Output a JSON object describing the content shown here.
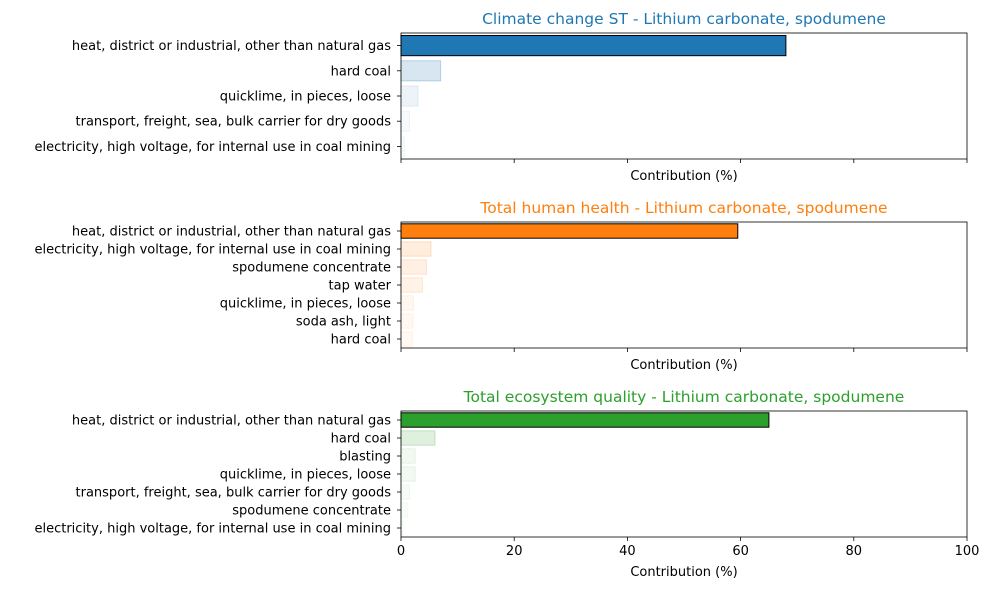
{
  "chart_data": [
    {
      "type": "bar",
      "orientation": "horizontal",
      "title": "Climate change ST - Lithium carbonate, spodumene",
      "title_color": "#1f77b4",
      "bar_color": "#1f77b4",
      "xlabel": "Contribution (%)",
      "xlim": [
        0,
        100
      ],
      "x_ticks": [
        0,
        20,
        40,
        60,
        80,
        100
      ],
      "show_tick_labels": false,
      "categories": [
        "heat, district or industrial, other than natural gas",
        "hard coal",
        "quicklime, in pieces, loose",
        "transport, freight, sea, bulk carrier for dry goods",
        "electricity, high voltage, for internal use in coal mining"
      ],
      "values": [
        68,
        7,
        3,
        1.5,
        0.6
      ]
    },
    {
      "type": "bar",
      "orientation": "horizontal",
      "title": "Total human health - Lithium carbonate, spodumene",
      "title_color": "#ff7f0e",
      "bar_color": "#ff7f0e",
      "xlabel": "Contribution (%)",
      "xlim": [
        0,
        100
      ],
      "x_ticks": [
        0,
        20,
        40,
        60,
        80,
        100
      ],
      "show_tick_labels": false,
      "categories": [
        "heat, district or industrial, other than natural gas",
        "electricity, high voltage, for internal use in coal mining",
        "spodumene concentrate",
        "tap water",
        "quicklime, in pieces, loose",
        "soda ash, light",
        "hard coal"
      ],
      "values": [
        59.5,
        5.3,
        4.5,
        3.8,
        2.2,
        2.1,
        2.0
      ]
    },
    {
      "type": "bar",
      "orientation": "horizontal",
      "title": "Total ecosystem quality - Lithium carbonate, spodumene",
      "title_color": "#2ca02c",
      "bar_color": "#2ca02c",
      "xlabel": "Contribution (%)",
      "xlim": [
        0,
        100
      ],
      "x_ticks": [
        0,
        20,
        40,
        60,
        80,
        100
      ],
      "show_tick_labels": true,
      "categories": [
        "heat, district or industrial, other than natural gas",
        "hard coal",
        "blasting",
        "quicklime, in pieces, loose",
        "transport, freight, sea, bulk carrier for dry goods",
        "spodumene concentrate",
        "electricity, high voltage, for internal use in coal mining"
      ],
      "values": [
        65,
        6,
        2.5,
        2.5,
        1.5,
        1.2,
        0.4
      ]
    }
  ]
}
